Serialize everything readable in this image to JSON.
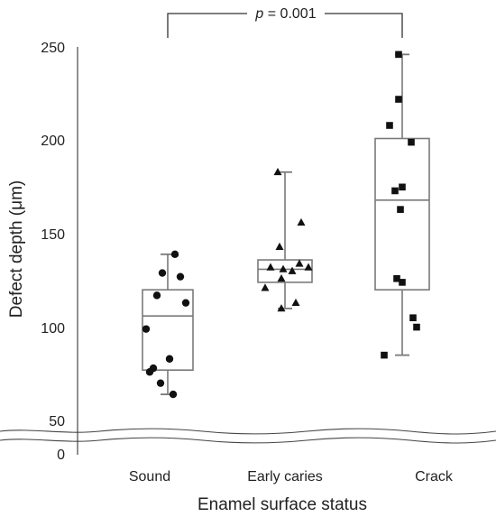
{
  "chart_data": {
    "type": "box",
    "xlabel": "Enamel surface status",
    "ylabel": "Defect depth (μm)",
    "categories": [
      "Sound",
      "Early caries",
      "Crack"
    ],
    "yticks": [
      "0",
      "50",
      "100",
      "150",
      "200",
      "250"
    ],
    "ylim": [
      60,
      250
    ],
    "axis_break": true,
    "significance": {
      "from": "Sound",
      "to": "Crack",
      "label_italic": "p",
      "label_rest": " = 0.001"
    },
    "boxes": [
      {
        "category": "Sound",
        "whisker_low": 63,
        "q1": 76,
        "median": 105,
        "q3": 119,
        "whisker_high": 138,
        "marker": "circle",
        "points": [
          138,
          128,
          126,
          116,
          112,
          98,
          82,
          77,
          75,
          69,
          63
        ]
      },
      {
        "category": "Early caries",
        "whisker_low": 109,
        "q1": 123,
        "median": 130,
        "q3": 135,
        "whisker_high": 182,
        "marker": "triangle",
        "points": [
          182,
          155,
          142,
          133,
          131,
          131,
          130,
          129,
          125,
          120,
          112,
          109
        ]
      },
      {
        "category": "Crack",
        "whisker_low": 84,
        "q1": 119,
        "median": 167,
        "q3": 200,
        "whisker_high": 245,
        "marker": "square",
        "points": [
          245,
          221,
          207,
          198,
          174,
          172,
          162,
          125,
          123,
          104,
          99,
          84
        ]
      }
    ],
    "colors": {
      "box": "#7a7a7a",
      "points": "#111111",
      "axis": "#555555"
    }
  }
}
